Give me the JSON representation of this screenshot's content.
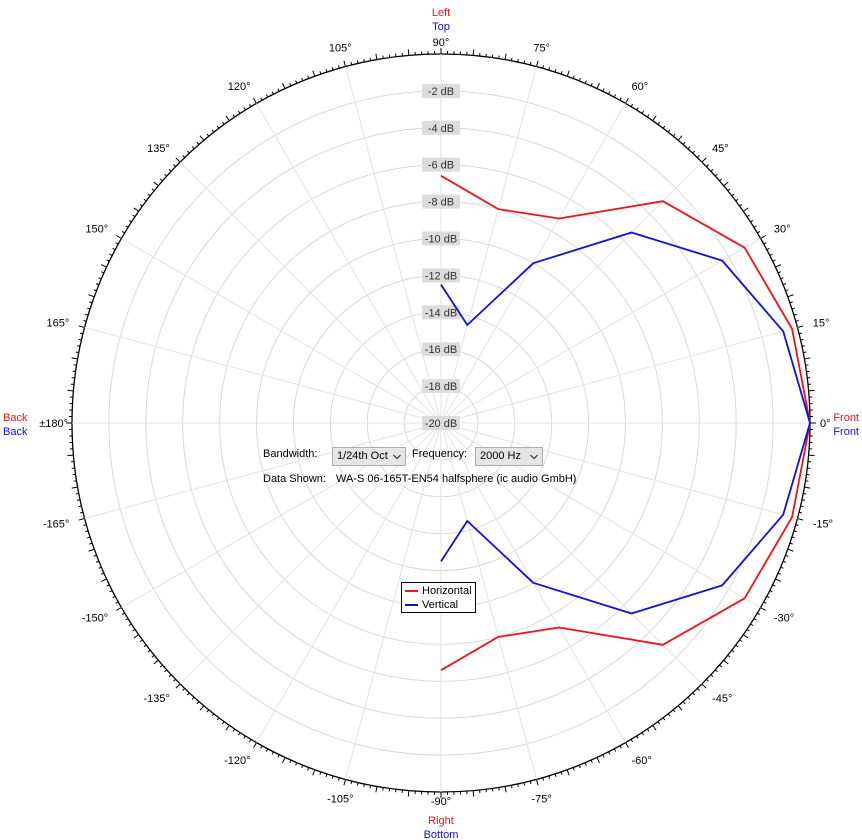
{
  "chart_data": {
    "type": "polar-line",
    "radial_axis": {
      "unit": "dB",
      "min": -20,
      "max": 0,
      "tick_labels": [
        "-2 dB",
        "-4 dB",
        "-6 dB",
        "-8 dB",
        "-10 dB",
        "-12 dB",
        "-14 dB",
        "-16 dB",
        "-18 dB",
        "-20 dB"
      ]
    },
    "angle_labels": [
      {
        "angle": 90,
        "text": "90°"
      },
      {
        "angle": 105,
        "text": "105°"
      },
      {
        "angle": 75,
        "text": "75°"
      },
      {
        "angle": 120,
        "text": "120°"
      },
      {
        "angle": 60,
        "text": "60°"
      },
      {
        "angle": 135,
        "text": "135°"
      },
      {
        "angle": 45,
        "text": "45°"
      },
      {
        "angle": 150,
        "text": "150°"
      },
      {
        "angle": 30,
        "text": "30°"
      },
      {
        "angle": 165,
        "text": "165°"
      },
      {
        "angle": 15,
        "text": "15°"
      },
      {
        "angle": 180,
        "text": "±180°"
      },
      {
        "angle": 0,
        "text": "0°"
      },
      {
        "angle": -165,
        "text": "-165°"
      },
      {
        "angle": -15,
        "text": "-15°"
      },
      {
        "angle": -150,
        "text": "-150°"
      },
      {
        "angle": -30,
        "text": "-30°"
      },
      {
        "angle": -135,
        "text": "-135°"
      },
      {
        "angle": -45,
        "text": "-45°"
      },
      {
        "angle": -120,
        "text": "-120°"
      },
      {
        "angle": -60,
        "text": "-60°"
      },
      {
        "angle": -105,
        "text": "-105°"
      },
      {
        "angle": -75,
        "text": "-75°"
      },
      {
        "angle": -90,
        "text": "-90°"
      }
    ],
    "direction_labels": {
      "top_red": "Left",
      "top_blue": "Top",
      "bottom_red": "Right",
      "bottom_blue": "Bottom",
      "left_red": "Back",
      "left_blue": "Back",
      "right_red": "Front",
      "right_blue": "Front"
    },
    "series": [
      {
        "name": "Horizontal",
        "color": "#e8161b",
        "points": [
          {
            "angle": -90,
            "db": -6.6
          },
          {
            "angle": -75,
            "db": -8.0
          },
          {
            "angle": -60,
            "db": -7.2
          },
          {
            "angle": -45,
            "db": -3.0
          },
          {
            "angle": -30,
            "db": -1.0
          },
          {
            "angle": -15,
            "db": -0.3
          },
          {
            "angle": 0,
            "db": 0.0
          },
          {
            "angle": 15,
            "db": -0.3
          },
          {
            "angle": 30,
            "db": -1.0
          },
          {
            "angle": 45,
            "db": -3.0
          },
          {
            "angle": 60,
            "db": -7.2
          },
          {
            "angle": 75,
            "db": -8.0
          },
          {
            "angle": 90,
            "db": -6.6
          }
        ]
      },
      {
        "name": "Vertical",
        "color": "#1010d0",
        "points": [
          {
            "angle": -90,
            "db": -12.5
          },
          {
            "angle": -75,
            "db": -14.5
          },
          {
            "angle": -60,
            "db": -10.0
          },
          {
            "angle": -45,
            "db": -5.4
          },
          {
            "angle": -30,
            "db": -2.4
          },
          {
            "angle": -15,
            "db": -0.8
          },
          {
            "angle": 0,
            "db": 0.0
          },
          {
            "angle": 15,
            "db": -0.8
          },
          {
            "angle": 30,
            "db": -2.4
          },
          {
            "angle": 45,
            "db": -5.4
          },
          {
            "angle": 60,
            "db": -10.0
          },
          {
            "angle": 75,
            "db": -14.5
          },
          {
            "angle": 90,
            "db": -12.5
          }
        ]
      }
    ],
    "legend_position": "center-bottom"
  },
  "controls": {
    "bandwidth_label": "Bandwidth:",
    "bandwidth_value": "1/24th Oct",
    "frequency_label": "Frequency:",
    "frequency_value": "2000 Hz",
    "data_shown_label": "Data Shown:",
    "data_shown_value": "WA-S 06-165T-EN54 halfsphere (ic audio GmbH)"
  },
  "legend": {
    "horizontal": "Horizontal",
    "vertical": "Vertical"
  }
}
